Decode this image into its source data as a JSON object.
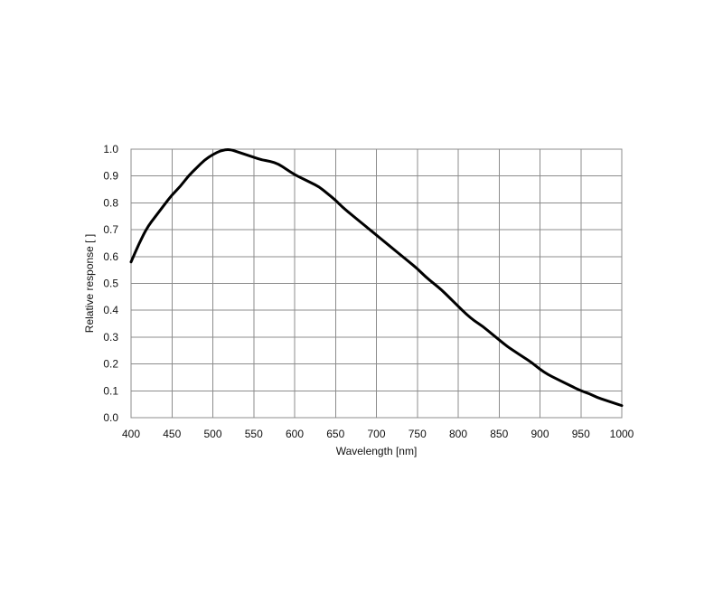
{
  "chart_data": {
    "type": "line",
    "title": "",
    "xlabel": "Wavelength [nm]",
    "ylabel": "Relative response [ ]",
    "xlim": [
      400,
      1000
    ],
    "ylim": [
      0.0,
      1.0
    ],
    "xticks": [
      "400",
      "450",
      "500",
      "550",
      "600",
      "650",
      "700",
      "750",
      "800",
      "850",
      "900",
      "950",
      "1000"
    ],
    "yticks": [
      "0.0",
      "0.1",
      "0.2",
      "0.3",
      "0.4",
      "0.5",
      "0.6",
      "0.7",
      "0.8",
      "0.9",
      "1.0"
    ],
    "grid": true,
    "line_color": "#000000",
    "grid_color": "#8c8c8c",
    "series": [
      {
        "x": [
          400,
          410,
          420,
          430,
          440,
          450,
          460,
          470,
          480,
          490,
          500,
          510,
          520,
          530,
          540,
          550,
          560,
          570,
          580,
          590,
          600,
          610,
          620,
          630,
          640,
          650,
          660,
          670,
          680,
          690,
          700,
          710,
          720,
          730,
          740,
          750,
          760,
          770,
          780,
          790,
          800,
          810,
          820,
          830,
          840,
          850,
          860,
          870,
          880,
          890,
          900,
          910,
          920,
          930,
          940,
          950,
          960,
          970,
          980,
          990,
          1000
        ],
        "y": [
          0.58,
          0.65,
          0.71,
          0.75,
          0.79,
          0.83,
          0.86,
          0.9,
          0.93,
          0.96,
          0.98,
          0.995,
          1.0,
          0.99,
          0.98,
          0.97,
          0.96,
          0.955,
          0.945,
          0.925,
          0.905,
          0.89,
          0.875,
          0.86,
          0.835,
          0.81,
          0.78,
          0.755,
          0.73,
          0.705,
          0.68,
          0.655,
          0.63,
          0.605,
          0.58,
          0.555,
          0.525,
          0.5,
          0.475,
          0.445,
          0.415,
          0.385,
          0.36,
          0.34,
          0.315,
          0.29,
          0.265,
          0.245,
          0.225,
          0.205,
          0.18,
          0.16,
          0.145,
          0.13,
          0.115,
          0.1,
          0.09,
          0.075,
          0.065,
          0.055,
          0.045
        ]
      }
    ]
  }
}
